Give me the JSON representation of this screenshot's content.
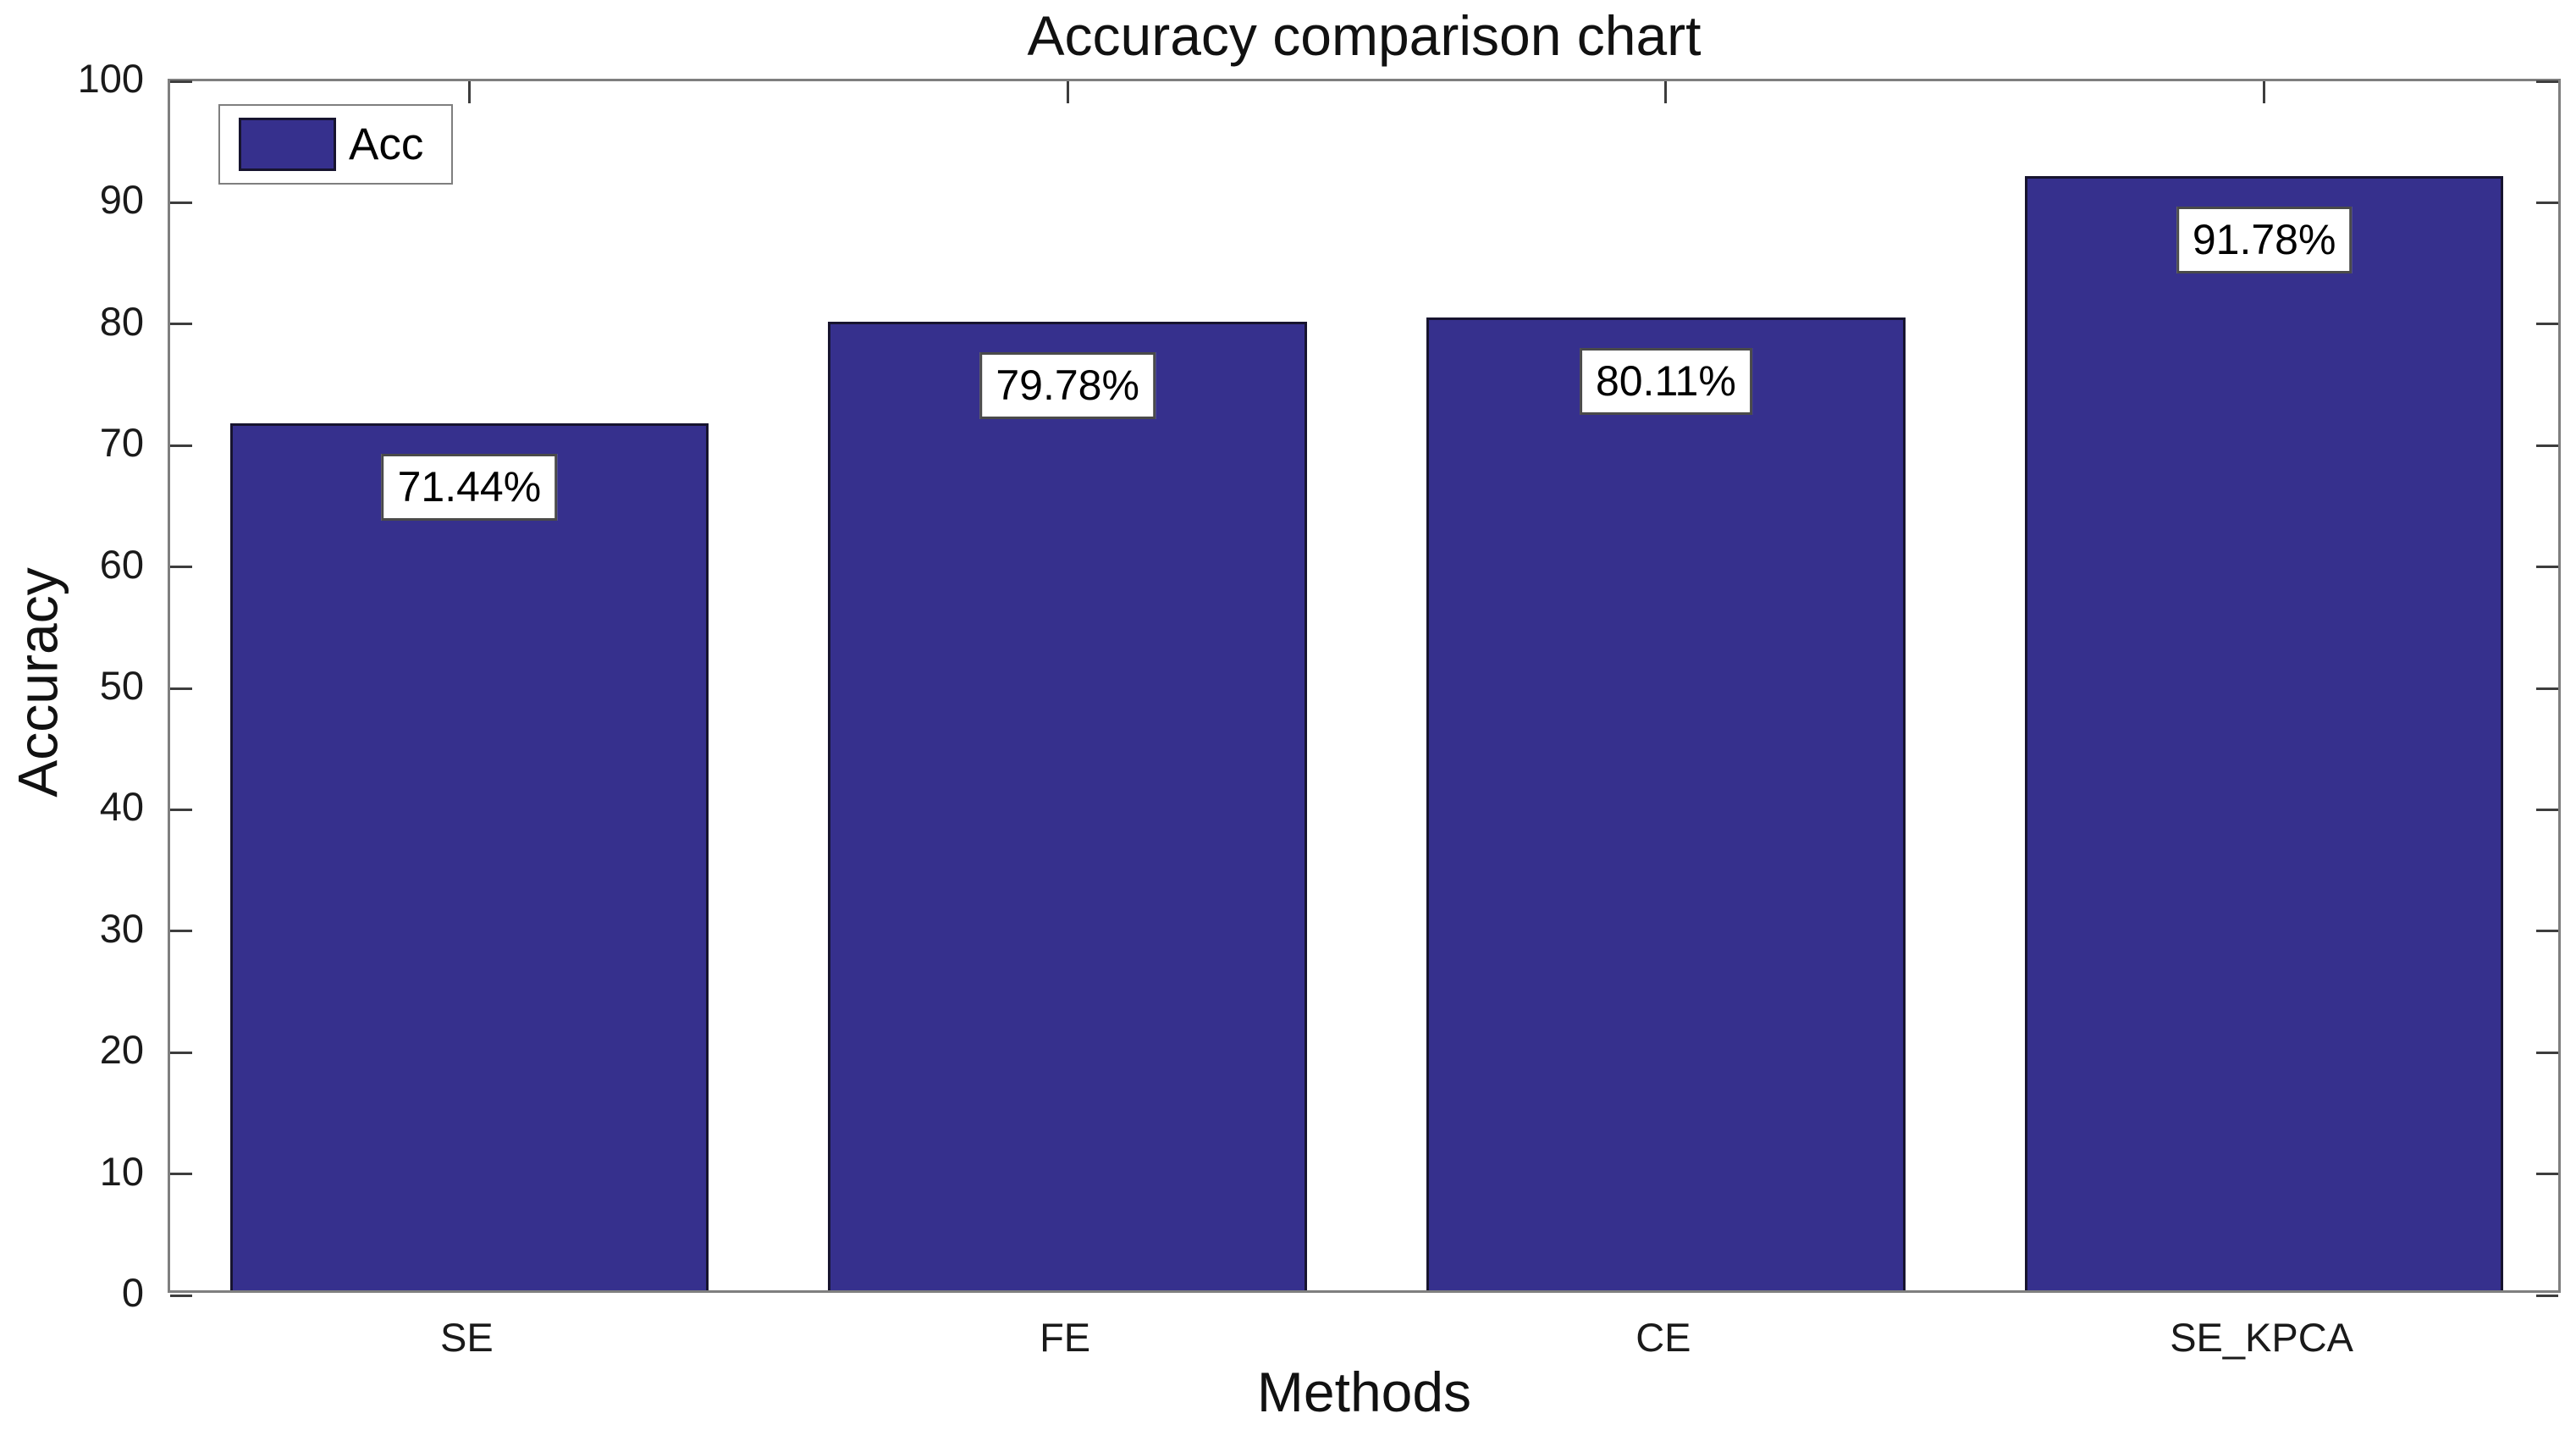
{
  "chart_data": {
    "type": "bar",
    "title": "Accuracy comparison chart",
    "xlabel": "Methods",
    "ylabel": "Accuracy",
    "categories": [
      "SE",
      "FE",
      "CE",
      "SE_KPCA"
    ],
    "values": [
      71.44,
      79.78,
      80.11,
      91.78
    ],
    "bar_value_labels": [
      "71.44%",
      "79.78%",
      "80.11%",
      "91.78%"
    ],
    "legend": {
      "entries": [
        "Acc"
      ],
      "position": "top-left"
    },
    "ylim": [
      0,
      100
    ],
    "yticks": [
      0,
      10,
      20,
      30,
      40,
      50,
      60,
      70,
      80,
      90,
      100
    ],
    "xticks_mirrored_top": true,
    "yticks_mirrored_right": true,
    "grid": false,
    "bar_width_fraction": 0.8,
    "colors": {
      "bar_fill": "#36308D",
      "bar_edge": "#17142F",
      "axis_frame": "#7F7F7F",
      "tick_mark": "#3D3D3D",
      "text": "#1A1A1A",
      "value_box_border": "#4A4A4A",
      "value_box_bg": "#FFFFFF",
      "background": "#FFFFFF"
    }
  }
}
